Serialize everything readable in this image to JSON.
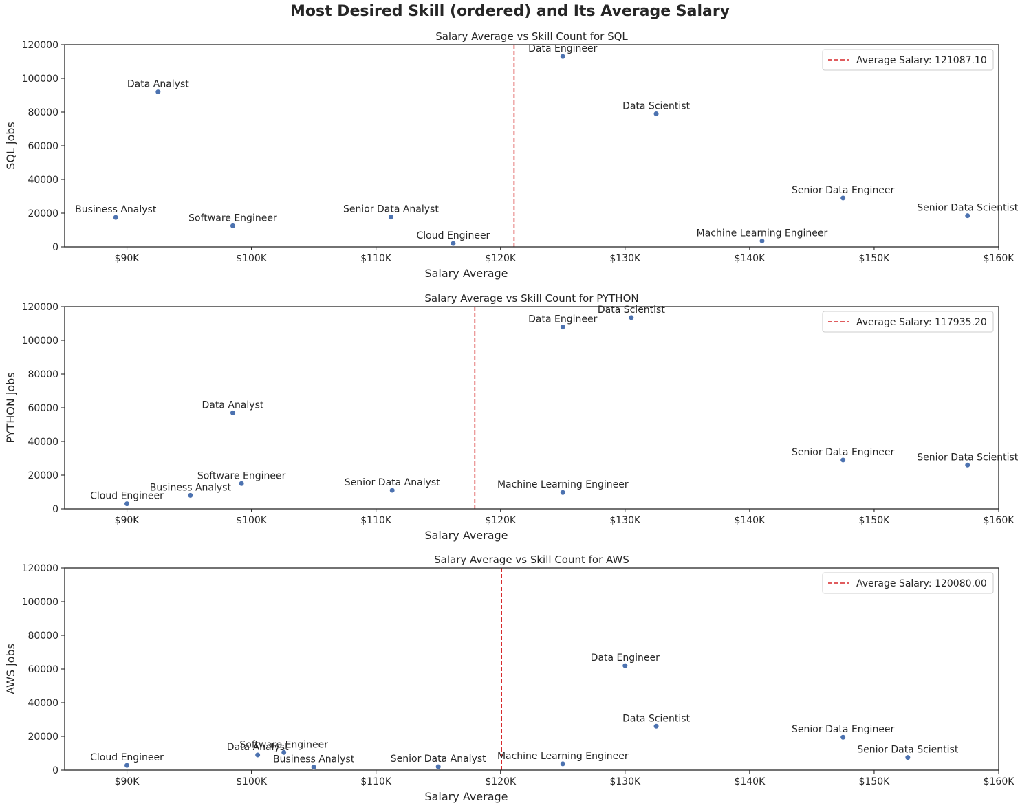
{
  "figure_title": "Most Desired Skill (ordered) and Its Average Salary",
  "colors": {
    "point": "#4c72b0",
    "avg_line": "#d62728",
    "axes": "#262626",
    "text": "#262626"
  },
  "chart_data": [
    {
      "type": "scatter",
      "title": "Salary Average vs Skill Count for SQL",
      "xlabel": "Salary Average",
      "ylabel": "SQL jobs",
      "xlim": [
        85000,
        160000
      ],
      "ylim": [
        0,
        120000
      ],
      "x_ticks": [
        90000,
        100000,
        110000,
        120000,
        130000,
        140000,
        150000,
        160000
      ],
      "x_tick_labels": [
        "$90K",
        "$100K",
        "$110K",
        "$120K",
        "$130K",
        "$140K",
        "$150K",
        "$160K"
      ],
      "y_ticks": [
        0,
        20000,
        40000,
        60000,
        80000,
        100000,
        120000
      ],
      "y_tick_labels": [
        "0",
        "20000",
        "40000",
        "60000",
        "80000",
        "100000",
        "120000"
      ],
      "average_line": {
        "x": 121087.1,
        "label": "Average Salary: 121087.10"
      },
      "legend": "top-right",
      "points": [
        {
          "label": "Data Engineer",
          "x": 125000,
          "y": 113000
        },
        {
          "label": "Data Analyst",
          "x": 92500,
          "y": 92000
        },
        {
          "label": "Data Scientist",
          "x": 132500,
          "y": 79000
        },
        {
          "label": "Senior Data Engineer",
          "x": 147500,
          "y": 29000
        },
        {
          "label": "Senior Data Scientist",
          "x": 157500,
          "y": 18500
        },
        {
          "label": "Business Analyst",
          "x": 89100,
          "y": 17500
        },
        {
          "label": "Senior Data Analyst",
          "x": 111200,
          "y": 17800
        },
        {
          "label": "Software Engineer",
          "x": 98500,
          "y": 12500
        },
        {
          "label": "Machine Learning Engineer",
          "x": 141000,
          "y": 3500
        },
        {
          "label": "Cloud Engineer",
          "x": 116200,
          "y": 2000
        }
      ]
    },
    {
      "type": "scatter",
      "title": "Salary Average vs Skill Count for PYTHON",
      "xlabel": "Salary Average",
      "ylabel": "PYTHON jobs",
      "xlim": [
        85000,
        160000
      ],
      "ylim": [
        0,
        120000
      ],
      "x_ticks": [
        90000,
        100000,
        110000,
        120000,
        130000,
        140000,
        150000,
        160000
      ],
      "x_tick_labels": [
        "$90K",
        "$100K",
        "$110K",
        "$120K",
        "$130K",
        "$140K",
        "$150K",
        "$160K"
      ],
      "y_ticks": [
        0,
        20000,
        40000,
        60000,
        80000,
        100000,
        120000
      ],
      "y_tick_labels": [
        "0",
        "20000",
        "40000",
        "60000",
        "80000",
        "100000",
        "120000"
      ],
      "average_line": {
        "x": 117935.2,
        "label": "Average Salary: 117935.20"
      },
      "legend": "top-right",
      "points": [
        {
          "label": "Data Scientist",
          "x": 130500,
          "y": 113500
        },
        {
          "label": "Data Engineer",
          "x": 125000,
          "y": 108000
        },
        {
          "label": "Data Analyst",
          "x": 98500,
          "y": 57000
        },
        {
          "label": "Senior Data Engineer",
          "x": 147500,
          "y": 29000
        },
        {
          "label": "Senior Data Scientist",
          "x": 157500,
          "y": 26000
        },
        {
          "label": "Software Engineer",
          "x": 99200,
          "y": 15000
        },
        {
          "label": "Senior Data Analyst",
          "x": 111300,
          "y": 11000
        },
        {
          "label": "Machine Learning Engineer",
          "x": 125000,
          "y": 9700
        },
        {
          "label": "Business Analyst",
          "x": 95100,
          "y": 8000
        },
        {
          "label": "Cloud Engineer",
          "x": 90000,
          "y": 3000
        }
      ]
    },
    {
      "type": "scatter",
      "title": "Salary Average vs Skill Count for AWS",
      "xlabel": "Salary Average",
      "ylabel": "AWS jobs",
      "xlim": [
        85000,
        160000
      ],
      "ylim": [
        0,
        120000
      ],
      "x_ticks": [
        90000,
        100000,
        110000,
        120000,
        130000,
        140000,
        150000,
        160000
      ],
      "x_tick_labels": [
        "$90K",
        "$100K",
        "$110K",
        "$120K",
        "$130K",
        "$140K",
        "$150K",
        "$160K"
      ],
      "y_ticks": [
        0,
        20000,
        40000,
        60000,
        80000,
        100000,
        120000
      ],
      "y_tick_labels": [
        "0",
        "20000",
        "40000",
        "60000",
        "80000",
        "100000",
        "120000"
      ],
      "average_line": {
        "x": 120080.0,
        "label": "Average Salary: 120080.00"
      },
      "legend": "top-right",
      "points": [
        {
          "label": "Data Engineer",
          "x": 130000,
          "y": 62000
        },
        {
          "label": "Data Scientist",
          "x": 132500,
          "y": 26000
        },
        {
          "label": "Senior Data Engineer",
          "x": 147500,
          "y": 19500
        },
        {
          "label": "Senior Data Scientist",
          "x": 152700,
          "y": 7500
        },
        {
          "label": "Software Engineer",
          "x": 102600,
          "y": 10500
        },
        {
          "label": "Data Analyst",
          "x": 100500,
          "y": 9000
        },
        {
          "label": "Machine Learning Engineer",
          "x": 125000,
          "y": 3700
        },
        {
          "label": "Cloud Engineer",
          "x": 90000,
          "y": 2800
        },
        {
          "label": "Senior Data Analyst",
          "x": 115000,
          "y": 2000
        },
        {
          "label": "Business Analyst",
          "x": 105000,
          "y": 1800
        }
      ]
    }
  ]
}
